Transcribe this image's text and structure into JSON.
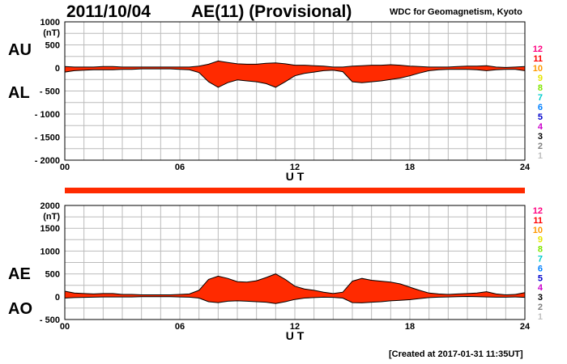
{
  "header": {
    "date": "2011/10/04",
    "title": "AE(11) (Provisional)",
    "source": "WDC for Geomagnetism, Kyoto"
  },
  "footer": {
    "created": "[Created at 2017-01-31 11:35UT]"
  },
  "colors": {
    "fill": "#ff2a00",
    "line": "#000000",
    "grid": "#bbbbbb"
  },
  "station_levels": [
    "12",
    "11",
    "10",
    "9",
    "8",
    "7",
    "6",
    "5",
    "4",
    "3",
    "2",
    "1"
  ],
  "station_colors": [
    "#ff0080",
    "#ff0000",
    "#ff9900",
    "#e6e600",
    "#80e600",
    "#00cccc",
    "#0080ff",
    "#0000cc",
    "#cc00cc",
    "#000000",
    "#808080",
    "#c0c0c0"
  ],
  "availability_bar": {
    "coverage_fraction": 1.0,
    "color": "#ff2a00"
  },
  "chart_data": [
    {
      "type": "area",
      "panel": "AU/AL",
      "series_labels": [
        "AU",
        "AL"
      ],
      "unit": "(nT)",
      "xlabel": "U T",
      "xlim": [
        0,
        24
      ],
      "xticks": [
        "00",
        "06",
        "12",
        "18",
        "24"
      ],
      "ylim": [
        -2000,
        1000
      ],
      "yticks": [
        "1000",
        "500",
        "0",
        "- 500",
        "- 1000",
        "- 1500",
        "- 2000"
      ],
      "ytick_values": [
        1000,
        500,
        0,
        -500,
        -1000,
        -1500,
        -2000
      ],
      "grid": true,
      "x": [
        0,
        0.5,
        1,
        1.5,
        2,
        2.5,
        3,
        3.5,
        4,
        4.5,
        5,
        5.5,
        6,
        6.5,
        7,
        7.5,
        8,
        8.5,
        9,
        9.5,
        10,
        10.5,
        11,
        11.5,
        12,
        12.5,
        13,
        13.5,
        14,
        14.5,
        15,
        15.5,
        16,
        16.5,
        17,
        17.5,
        18,
        18.5,
        19,
        19.5,
        20,
        20.5,
        21,
        21.5,
        22,
        22.5,
        23,
        23.5,
        24
      ],
      "series": [
        {
          "name": "AU",
          "values": [
            30,
            20,
            20,
            20,
            30,
            30,
            20,
            20,
            20,
            20,
            20,
            20,
            20,
            20,
            40,
            80,
            150,
            120,
            90,
            80,
            80,
            100,
            110,
            90,
            60,
            60,
            50,
            40,
            20,
            20,
            40,
            50,
            60,
            60,
            70,
            60,
            40,
            30,
            20,
            20,
            20,
            30,
            40,
            40,
            50,
            20,
            10,
            20,
            30
          ]
        },
        {
          "name": "AL",
          "values": [
            -90,
            -60,
            -50,
            -40,
            -40,
            -40,
            -30,
            -30,
            -20,
            -20,
            -20,
            -20,
            -30,
            -40,
            -100,
            -300,
            -420,
            -320,
            -260,
            -280,
            -300,
            -340,
            -420,
            -300,
            -170,
            -120,
            -90,
            -60,
            -50,
            -80,
            -300,
            -320,
            -300,
            -280,
            -250,
            -220,
            -170,
            -110,
            -60,
            -40,
            -30,
            -30,
            -30,
            -40,
            -60,
            -40,
            -30,
            -30,
            -60
          ]
        }
      ]
    },
    {
      "type": "area",
      "panel": "AE/AO",
      "series_labels": [
        "AE",
        "AO"
      ],
      "unit": "(nT)",
      "xlabel": "U T",
      "xlim": [
        0,
        24
      ],
      "xticks": [
        "00",
        "06",
        "12",
        "18",
        "24"
      ],
      "ylim": [
        -500,
        2000
      ],
      "yticks": [
        "2000",
        "1500",
        "1000",
        "500",
        "0",
        "- 500"
      ],
      "ytick_values": [
        2000,
        1500,
        1000,
        500,
        0,
        -500
      ],
      "grid": true,
      "x": [
        0,
        0.5,
        1,
        1.5,
        2,
        2.5,
        3,
        3.5,
        4,
        4.5,
        5,
        5.5,
        6,
        6.5,
        7,
        7.5,
        8,
        8.5,
        9,
        9.5,
        10,
        10.5,
        11,
        11.5,
        12,
        12.5,
        13,
        13.5,
        14,
        14.5,
        15,
        15.5,
        16,
        16.5,
        17,
        17.5,
        18,
        18.5,
        19,
        19.5,
        20,
        20.5,
        21,
        21.5,
        22,
        22.5,
        23,
        23.5,
        24
      ],
      "series": [
        {
          "name": "AE",
          "values": [
            120,
            80,
            70,
            60,
            70,
            70,
            50,
            50,
            40,
            40,
            40,
            40,
            50,
            60,
            140,
            380,
            450,
            400,
            330,
            320,
            350,
            420,
            500,
            380,
            230,
            170,
            140,
            100,
            70,
            100,
            340,
            400,
            360,
            340,
            320,
            280,
            210,
            140,
            80,
            60,
            50,
            60,
            70,
            80,
            110,
            60,
            40,
            50,
            90
          ]
        },
        {
          "name": "AO",
          "values": [
            -30,
            -20,
            -15,
            -10,
            -5,
            -5,
            -5,
            -5,
            0,
            0,
            0,
            0,
            -5,
            -10,
            -30,
            -110,
            -130,
            -100,
            -90,
            -100,
            -110,
            -120,
            -150,
            -110,
            -60,
            -30,
            -20,
            -10,
            -15,
            -30,
            -130,
            -135,
            -120,
            -110,
            -90,
            -80,
            -65,
            -40,
            -20,
            -10,
            -5,
            0,
            5,
            0,
            -5,
            -10,
            -10,
            -5,
            -15
          ]
        }
      ]
    }
  ]
}
